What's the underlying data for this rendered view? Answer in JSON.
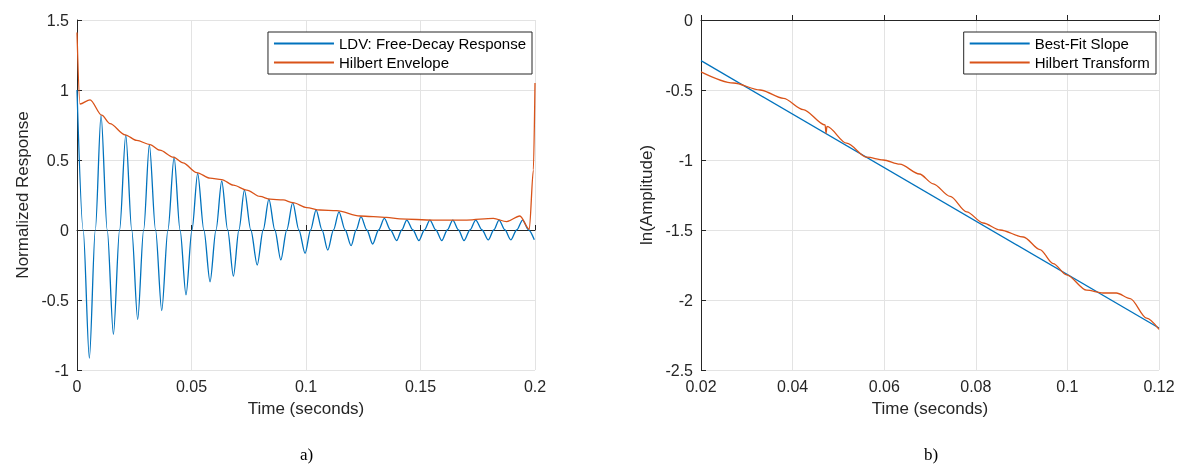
{
  "chart_data": [
    {
      "type": "line",
      "xlabel": "Time (seconds)",
      "ylabel": "Normalized Response",
      "annotations": [
        "a)"
      ],
      "xlim": [
        0,
        0.2
      ],
      "xticks": [
        0,
        0.05,
        0.1,
        0.15,
        0.2
      ],
      "ylim": [
        -1,
        1.5
      ],
      "yticks": [
        -1,
        -0.5,
        0,
        0.5,
        1,
        1.5
      ],
      "grid": true,
      "legend": "top right",
      "marker": "none",
      "line_style": "solid",
      "series": [
        {
          "name": "LDV: Free-Decay Response",
          "color": "#0072bd",
          "x": [
            0,
            0.0027,
            0.0054,
            0.008,
            0.0105,
            0.0132,
            0.0159,
            0.0186,
            0.0213,
            0.0239,
            0.0265,
            0.0291,
            0.0316,
            0.0343,
            0.037,
            0.0397,
            0.0424,
            0.045,
            0.0476,
            0.0502,
            0.0527,
            0.0554,
            0.0581,
            0.0607,
            0.0632,
            0.0658,
            0.0683,
            0.0707,
            0.0731,
            0.0759,
            0.0787,
            0.0813,
            0.0838,
            0.0864,
            0.089,
            0.0916,
            0.0942,
            0.0969,
            0.0996,
            0.102,
            0.1044,
            0.107,
            0.1095,
            0.112,
            0.1144,
            0.1171,
            0.1197,
            0.1219,
            0.124,
            0.1266,
            0.1291,
            0.1317,
            0.1342,
            0.1369,
            0.1396,
            0.1418,
            0.144,
            0.1467,
            0.1493,
            0.1517,
            0.1541,
            0.1567,
            0.1593,
            0.1617,
            0.1641,
            0.1666,
            0.169,
            0.1716,
            0.1741,
            0.1769,
            0.1796,
            0.182,
            0.1843,
            0.1869,
            0.1894,
            0.192,
            0.1946,
            0.1972,
            0.1997
          ],
          "values": [
            1.0,
            0,
            -0.915,
            0,
            0.82,
            0,
            -0.745,
            0,
            0.68,
            0,
            -0.64,
            0,
            0.61,
            0,
            -0.576,
            0,
            0.52,
            0,
            -0.464,
            0,
            0.405,
            0,
            -0.37,
            0,
            0.35,
            0,
            -0.33,
            0,
            0.285,
            0,
            -0.25,
            0,
            0.22,
            0,
            -0.214,
            0,
            0.195,
            0,
            -0.167,
            0,
            0.143,
            0,
            -0.143,
            0,
            0.13,
            0,
            -0.112,
            0,
            0.095,
            0,
            -0.1,
            0,
            0.083,
            0,
            -0.076,
            0,
            0.071,
            0,
            -0.076,
            0,
            0.071,
            0,
            -0.076,
            0,
            0.071,
            0,
            -0.076,
            0,
            0.071,
            0,
            -0.07,
            0,
            0.071,
            0,
            -0.07,
            0,
            0.071,
            0,
            -0.07
          ]
        },
        {
          "name": "Hilbert Envelope",
          "color": "#d95319",
          "x": [
            0,
            0.0013,
            0.0057,
            0.0108,
            0.0144,
            0.021,
            0.0261,
            0.0319,
            0.0362,
            0.0421,
            0.0463,
            0.0523,
            0.0581,
            0.0632,
            0.0683,
            0.0741,
            0.0799,
            0.0843,
            0.09,
            0.0943,
            0.1003,
            0.1061,
            0.1134,
            0.1236,
            0.1352,
            0.141,
            0.1556,
            0.1702,
            0.1818,
            0.1876,
            0.1934,
            0.1975,
            0.1993,
            0.2
          ],
          "values": [
            1.41,
            0.9,
            0.93,
            0.82,
            0.76,
            0.68,
            0.64,
            0.61,
            0.57,
            0.52,
            0.48,
            0.41,
            0.37,
            0.36,
            0.32,
            0.285,
            0.24,
            0.22,
            0.215,
            0.195,
            0.16,
            0.143,
            0.138,
            0.1,
            0.09,
            0.079,
            0.071,
            0.071,
            0.083,
            0.06,
            0.1,
            0.005,
            0.43,
            1.05
          ]
        }
      ]
    },
    {
      "type": "line",
      "xlabel": "Time (seconds)",
      "ylabel": "ln(Amplitude)",
      "annotations": [
        "b)"
      ],
      "xlim": [
        0.02,
        0.12
      ],
      "xticks": [
        0.02,
        0.04,
        0.06,
        0.08,
        0.1,
        0.12
      ],
      "ylim": [
        -2.5,
        0
      ],
      "yticks": [
        -2.5,
        -2,
        -1.5,
        -1,
        -0.5,
        0
      ],
      "grid": true,
      "legend": "top right",
      "marker": "none",
      "line_style": "solid",
      "series": [
        {
          "name": "Best-Fit Slope",
          "color": "#0072bd",
          "x": [
            0.02,
            0.12
          ],
          "values": [
            -0.29,
            -2.2
          ]
        },
        {
          "name": "Hilbert Transform",
          "color": "#d95319",
          "x": [
            0.02,
            0.0271,
            0.0329,
            0.038,
            0.0423,
            0.0471,
            0.0473,
            0.0475,
            0.0518,
            0.0562,
            0.0598,
            0.0634,
            0.0677,
            0.0707,
            0.0744,
            0.078,
            0.0816,
            0.0853,
            0.0904,
            0.094,
            0.0969,
            0.0998,
            0.1042,
            0.1078,
            0.1107,
            0.1137,
            0.1173,
            0.12
          ],
          "values": [
            -0.37,
            -0.45,
            -0.5,
            -0.56,
            -0.64,
            -0.75,
            -0.81,
            -0.76,
            -0.88,
            -0.98,
            -1.0,
            -1.03,
            -1.1,
            -1.17,
            -1.26,
            -1.37,
            -1.45,
            -1.5,
            -1.55,
            -1.64,
            -1.74,
            -1.82,
            -1.93,
            -1.95,
            -1.95,
            -1.99,
            -2.13,
            -2.21
          ]
        }
      ]
    }
  ]
}
